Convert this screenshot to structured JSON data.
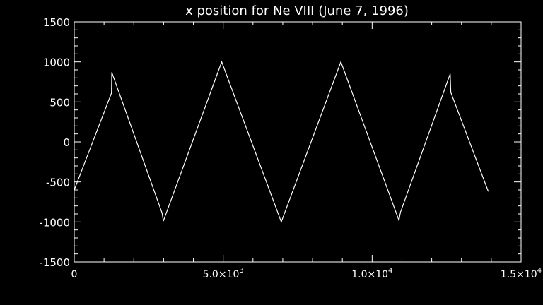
{
  "chart_data": {
    "type": "line",
    "title": "x position for Ne VIII (June 7, 1996)",
    "xlabel": "",
    "ylabel": "",
    "xlim": [
      0,
      15000
    ],
    "ylim": [
      -1500,
      1500
    ],
    "x_ticks": [
      {
        "value": 0,
        "label": "0"
      },
      {
        "value": 5000,
        "label": "5.0×10",
        "sup": "3"
      },
      {
        "value": 10000,
        "label": "1.0×10",
        "sup": "4"
      },
      {
        "value": 15000,
        "label": "1.5×10",
        "sup": "4"
      }
    ],
    "y_ticks": [
      {
        "value": 1500,
        "label": "1500"
      },
      {
        "value": 1000,
        "label": "1000"
      },
      {
        "value": 500,
        "label": "500"
      },
      {
        "value": 0,
        "label": "0"
      },
      {
        "value": -500,
        "label": "-500"
      },
      {
        "value": -1000,
        "label": "-1000"
      },
      {
        "value": -1500,
        "label": "-1500"
      }
    ],
    "grid": false,
    "series": [
      {
        "color": "#ffffff",
        "x": [
          0,
          1250,
          1260,
          2950,
          2990,
          4950,
          6950,
          8950,
          10900,
          10950,
          12620,
          12640,
          13900
        ],
        "y": [
          -600,
          610,
          870,
          -890,
          -990,
          1000,
          -1000,
          1000,
          -980,
          -880,
          850,
          620,
          -620
        ]
      }
    ]
  }
}
